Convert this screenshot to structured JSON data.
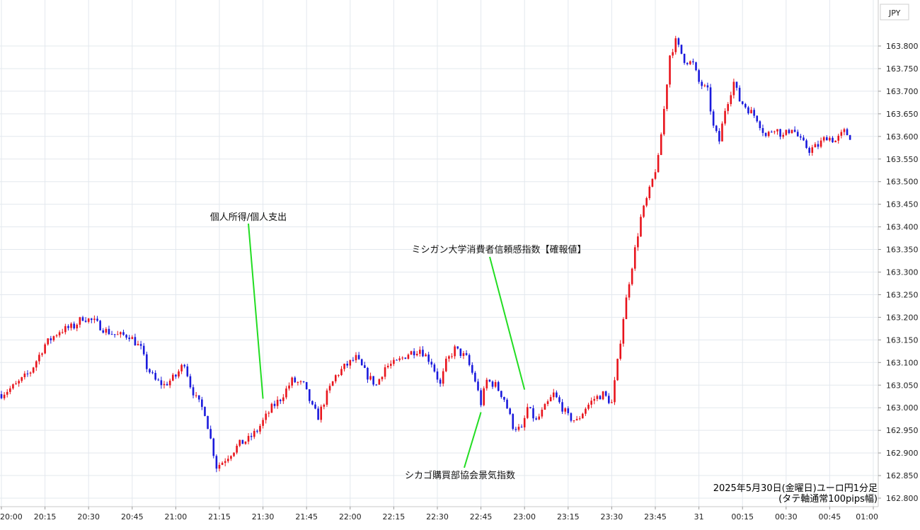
{
  "currency_label": "JPY",
  "caption": {
    "line1": "2025年5月30日(金曜日)ユーロ円1分足",
    "line2": "(タテ軸通常100pips幅)"
  },
  "annotations": [
    {
      "text": "個人所得/個人支出",
      "time": "21:30",
      "price": 163.02
    },
    {
      "text": "ミシガン大学消費者信頼感指数【確報値】",
      "time": "23:00",
      "price": 163.04
    },
    {
      "text": "シカゴ購買部協会景気指数",
      "time": "22:45",
      "price": 162.99
    }
  ],
  "colors": {
    "up": "#e8141c",
    "down": "#1a1adc",
    "grid": "#e3e8ee",
    "annotation_line": "#22dd22"
  },
  "chart_data": {
    "type": "candlestick",
    "title": "",
    "xlabel": "",
    "ylabel": "",
    "ylim": [
      162.79,
      163.86
    ],
    "y_ticks": [
      "163.800",
      "163.750",
      "163.700",
      "163.650",
      "163.600",
      "163.550",
      "163.500",
      "163.450",
      "163.400",
      "163.350",
      "163.300",
      "163.250",
      "163.200",
      "163.150",
      "163.100",
      "163.050",
      "163.000",
      "162.950",
      "162.900",
      "162.850",
      "162.800"
    ],
    "x_ticks": [
      "20:00",
      "20:15",
      "20:30",
      "20:45",
      "21:00",
      "21:15",
      "21:30",
      "21:45",
      "22:00",
      "22:15",
      "22:30",
      "22:45",
      "23:00",
      "23:15",
      "23:30",
      "23:45",
      "31",
      "00:15",
      "00:30",
      "00:45",
      "01:00"
    ],
    "grid": true,
    "close_path": [
      [
        "20:00",
        163.03
      ],
      [
        "20:05",
        163.05
      ],
      [
        "20:10",
        163.08
      ],
      [
        "20:15",
        163.14
      ],
      [
        "20:20",
        163.17
      ],
      [
        "20:25",
        163.18
      ],
      [
        "20:28",
        163.2
      ],
      [
        "20:32",
        163.19
      ],
      [
        "20:36",
        163.17
      ],
      [
        "20:40",
        163.16
      ],
      [
        "20:44",
        163.16
      ],
      [
        "20:48",
        163.13
      ],
      [
        "20:50",
        163.09
      ],
      [
        "20:53",
        163.06
      ],
      [
        "20:56",
        163.05
      ],
      [
        "21:00",
        163.07
      ],
      [
        "21:03",
        163.1
      ],
      [
        "21:05",
        163.05
      ],
      [
        "21:07",
        163.02
      ],
      [
        "21:10",
        162.99
      ],
      [
        "21:12",
        162.93
      ],
      [
        "21:14",
        162.87
      ],
      [
        "21:16",
        162.88
      ],
      [
        "21:19",
        162.9
      ],
      [
        "21:22",
        162.92
      ],
      [
        "21:25",
        162.93
      ],
      [
        "21:28",
        162.95
      ],
      [
        "21:30",
        162.97
      ],
      [
        "21:33",
        163.0
      ],
      [
        "21:36",
        163.02
      ],
      [
        "21:40",
        163.06
      ],
      [
        "21:44",
        163.05
      ],
      [
        "21:47",
        163.0
      ],
      [
        "21:49",
        162.98
      ],
      [
        "21:52",
        163.03
      ],
      [
        "21:55",
        163.07
      ],
      [
        "21:58",
        163.09
      ],
      [
        "22:02",
        163.11
      ],
      [
        "22:06",
        163.07
      ],
      [
        "22:09",
        163.05
      ],
      [
        "22:12",
        163.09
      ],
      [
        "22:16",
        163.1
      ],
      [
        "22:20",
        163.12
      ],
      [
        "22:24",
        163.13
      ],
      [
        "22:28",
        163.1
      ],
      [
        "22:31",
        163.05
      ],
      [
        "22:33",
        163.1
      ],
      [
        "22:36",
        163.13
      ],
      [
        "22:40",
        163.11
      ],
      [
        "22:43",
        163.06
      ],
      [
        "22:45",
        163.01
      ],
      [
        "22:47",
        163.06
      ],
      [
        "22:50",
        163.05
      ],
      [
        "22:53",
        163.02
      ],
      [
        "22:56",
        162.96
      ],
      [
        "22:59",
        162.95
      ],
      [
        "23:01",
        163.0
      ],
      [
        "23:04",
        162.97
      ],
      [
        "23:07",
        163.0
      ],
      [
        "23:10",
        163.03
      ],
      [
        "23:13",
        163.0
      ],
      [
        "23:15",
        162.98
      ],
      [
        "23:18",
        162.97
      ],
      [
        "23:21",
        163.0
      ],
      [
        "23:24",
        163.02
      ],
      [
        "23:27",
        163.03
      ],
      [
        "23:30",
        163.01
      ],
      [
        "23:32",
        163.1
      ],
      [
        "23:34",
        163.2
      ],
      [
        "23:36",
        163.28
      ],
      [
        "23:38",
        163.35
      ],
      [
        "23:40",
        163.42
      ],
      [
        "23:43",
        163.48
      ],
      [
        "23:46",
        163.55
      ],
      [
        "23:48",
        163.66
      ],
      [
        "23:50",
        163.78
      ],
      [
        "23:52",
        163.81
      ],
      [
        "23:55",
        163.77
      ],
      [
        "23:58",
        163.76
      ],
      [
        "00:00",
        163.72
      ],
      [
        "00:03",
        163.7
      ],
      [
        "00:05",
        163.62
      ],
      [
        "00:07",
        163.59
      ],
      [
        "00:09",
        163.66
      ],
      [
        "00:12",
        163.72
      ],
      [
        "00:14",
        163.68
      ],
      [
        "00:17",
        163.66
      ],
      [
        "00:20",
        163.64
      ],
      [
        "00:23",
        163.6
      ],
      [
        "00:26",
        163.62
      ],
      [
        "00:29",
        163.6
      ],
      [
        "00:32",
        163.62
      ],
      [
        "00:35",
        163.59
      ],
      [
        "00:38",
        163.57
      ],
      [
        "00:41",
        163.58
      ],
      [
        "00:44",
        163.6
      ],
      [
        "00:47",
        163.59
      ],
      [
        "00:50",
        163.61
      ],
      [
        "00:52",
        163.6
      ]
    ]
  }
}
